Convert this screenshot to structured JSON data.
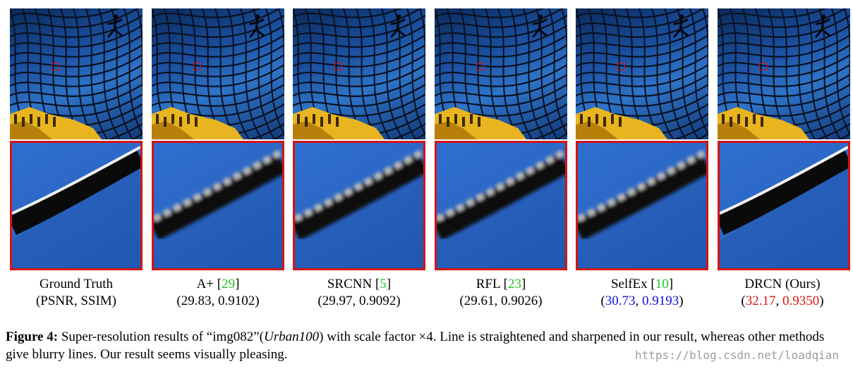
{
  "panels": [
    {
      "method": "Ground Truth",
      "ref": "",
      "metrics_text": "(PSNR, SSIM)",
      "psnr": "",
      "ssim": "",
      "metric_color": "black",
      "zoom_style": "sharp"
    },
    {
      "method": "A+ [",
      "ref": "29",
      "metrics_text": "",
      "psnr": "29.83",
      "ssim": "0.9102",
      "metric_color": "black",
      "zoom_style": "blurry"
    },
    {
      "method": "SRCNN [",
      "ref": "5",
      "metrics_text": "",
      "psnr": "29.97",
      "ssim": "0.9092",
      "metric_color": "black",
      "zoom_style": "blurry"
    },
    {
      "method": "RFL [",
      "ref": "23",
      "metrics_text": "",
      "psnr": "29.61",
      "ssim": "0.9026",
      "metric_color": "black",
      "zoom_style": "blurry"
    },
    {
      "method": "SelfEx [",
      "ref": "10",
      "metrics_text": "",
      "psnr": "30.73",
      "ssim": "0.9193",
      "metric_color": "#1010e0",
      "zoom_style": "blurry"
    },
    {
      "method": "DRCN (Ours)",
      "ref": "",
      "metrics_text": "",
      "psnr": "32.17",
      "ssim": "0.9350",
      "metric_color": "#e01010",
      "zoom_style": "sharp"
    }
  ],
  "caption": {
    "label": "Figure 4:",
    "text_a": " Super-resolution results of “img082”(",
    "dataset": "Urban100",
    "text_b": ") with scale factor ×4. Line is straightened and sharpened in our result, whereas other methods give blurry lines. Our result seems visually pleasing."
  },
  "watermark": "https://blog.csdn.net/loadqian",
  "colors": {
    "highlight_box": "#d41414",
    "ref_link": "#21c421",
    "second_best": "#1010e0",
    "best": "#e01010"
  }
}
